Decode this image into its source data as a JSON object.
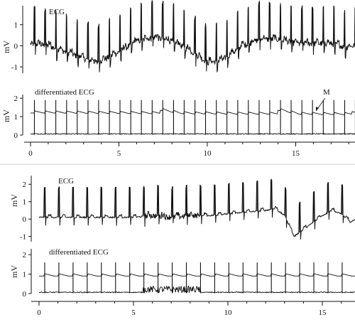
{
  "figure": {
    "background": "#ffffff",
    "ink": "#111111"
  },
  "chart_data": [
    {
      "type": "line",
      "panel": "top-ecg",
      "title": "ECG",
      "ylabel": "mV",
      "ylim": [
        -1.3,
        1.9
      ],
      "yticks": [
        "-1",
        "0",
        "1"
      ],
      "xlim": [
        0,
        19
      ],
      "beats": [
        0.22,
        0.83,
        1.43,
        2.04,
        2.64,
        3.25,
        3.85,
        4.46,
        5.06,
        5.67,
        6.27,
        6.88,
        7.48,
        8.09,
        8.69,
        9.3,
        9.9,
        10.51,
        11.11,
        11.72,
        12.32,
        12.93,
        13.53,
        14.14,
        14.74,
        15.35,
        15.95,
        16.56,
        17.16,
        17.77,
        18.37,
        18.98
      ],
      "baseline_wander": [
        [
          0,
          0.1
        ],
        [
          1,
          0.0
        ],
        [
          2,
          -0.3
        ],
        [
          3,
          -0.6
        ],
        [
          3.8,
          -0.8
        ],
        [
          5,
          -0.3
        ],
        [
          6,
          0.2
        ],
        [
          7,
          0.4
        ],
        [
          8,
          0.2
        ],
        [
          9,
          -0.2
        ],
        [
          10,
          -0.8
        ],
        [
          10.8,
          -0.7
        ],
        [
          12,
          0.0
        ],
        [
          13,
          0.3
        ],
        [
          14,
          0.3
        ],
        [
          15,
          0.1
        ],
        [
          16,
          0.1
        ],
        [
          17,
          0.1
        ],
        [
          18,
          -0.1
        ],
        [
          19,
          0.3
        ]
      ]
    },
    {
      "type": "line",
      "panel": "top-differentiated",
      "title": "differentiated  ECG",
      "annotation": "M",
      "ylabel": "mV",
      "ylim": [
        0,
        2.2
      ],
      "yticks": [
        "0",
        "1",
        "2"
      ],
      "xlim": [
        0,
        19
      ],
      "xlabel_ticks": [
        "0",
        "5",
        "10",
        "15"
      ],
      "xtick_values": [
        0,
        5,
        10,
        15
      ],
      "threshold_start": [
        0,
        1.2
      ],
      "threshold_reset": [
        [
          7.3,
          1.4
        ],
        [
          14.0,
          1.4
        ],
        [
          18.2,
          1.3
        ]
      ],
      "threshold_end": [
        19,
        1.1
      ],
      "spike_height": 1.9
    },
    {
      "type": "line",
      "panel": "bottom-ecg",
      "title": "ECG",
      "ylabel": "mV",
      "ylim": [
        -1.3,
        2.5
      ],
      "yticks": [
        "-1",
        "0",
        "1",
        "2"
      ],
      "xlim": [
        0,
        17
      ],
      "beats": [
        0.3,
        1.05,
        1.8,
        2.55,
        3.3,
        4.05,
        4.8,
        5.55,
        6.3,
        7.05,
        7.8,
        8.55,
        9.3,
        10.05,
        10.8,
        11.55,
        12.3,
        13.05,
        13.8,
        14.55,
        15.3,
        16.05,
        16.8
      ],
      "baseline_wander": [
        [
          0,
          0.1
        ],
        [
          5,
          0.1
        ],
        [
          6,
          0.2
        ],
        [
          7,
          0.1
        ],
        [
          8,
          0.2
        ],
        [
          9,
          0.2
        ],
        [
          10,
          0.3
        ],
        [
          11,
          0.4
        ],
        [
          12,
          0.5
        ],
        [
          12.5,
          0.6
        ],
        [
          13,
          0.2
        ],
        [
          13.5,
          -1.0
        ],
        [
          14,
          -0.6
        ],
        [
          15,
          0.2
        ],
        [
          15.5,
          0.5
        ],
        [
          16,
          0.3
        ],
        [
          16.5,
          -0.2
        ],
        [
          17,
          0.2
        ]
      ],
      "noise_segment": [
        5.5,
        8.5
      ]
    },
    {
      "type": "line",
      "panel": "bottom-differentiated",
      "title": "differentiated  ECG",
      "ylabel": "mV",
      "ylim": [
        0,
        2.3
      ],
      "yticks": [
        "0",
        "1",
        "2"
      ],
      "xlim": [
        0,
        17
      ],
      "xlabel_ticks": [
        "0",
        "5",
        "10",
        "15"
      ],
      "xtick_values": [
        0,
        5,
        10,
        15
      ],
      "threshold_start": [
        0,
        0.9
      ],
      "threshold_end": [
        17,
        0.9
      ],
      "spike_height": 1.6,
      "noise_segment": [
        5.5,
        8.5
      ]
    }
  ]
}
